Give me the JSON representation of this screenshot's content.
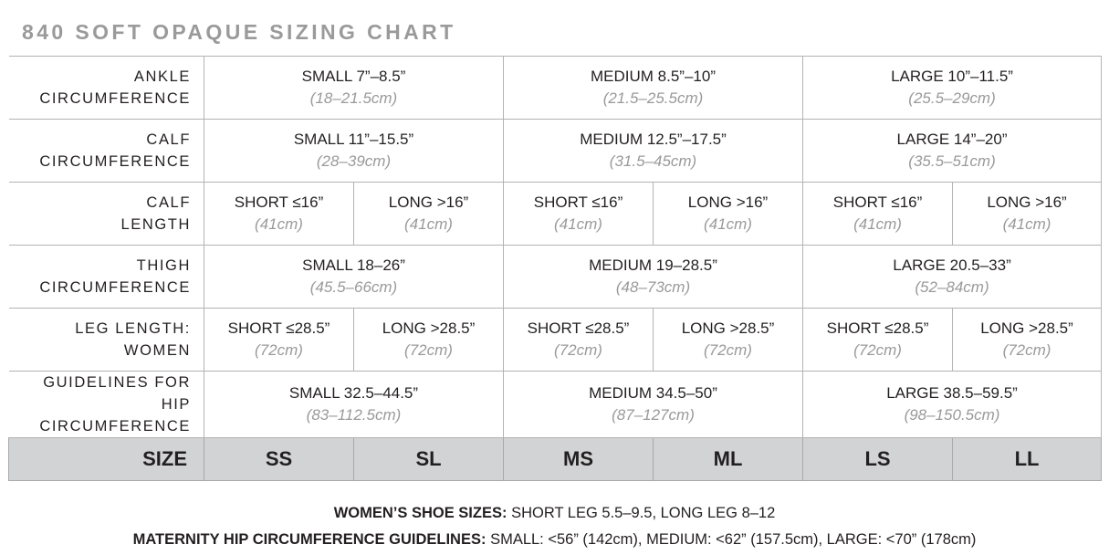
{
  "title": "840 SOFT OPAQUE SIZING CHART",
  "rows": {
    "ankle": {
      "label_1": "ANKLE",
      "label_2": "CIRCUMFERENCE",
      "small": {
        "size": "SMALL 7”–8.5”",
        "cm": "(18–21.5cm)"
      },
      "medium": {
        "size": "MEDIUM 8.5”–10”",
        "cm": "(21.5–25.5cm)"
      },
      "large": {
        "size": "LARGE 10”–11.5”",
        "cm": "(25.5–29cm)"
      }
    },
    "calf_circ": {
      "label_1": "CALF",
      "label_2": "CIRCUMFERENCE",
      "small": {
        "size": "SMALL 11”–15.5”",
        "cm": "(28–39cm)"
      },
      "medium": {
        "size": "MEDIUM 12.5”–17.5”",
        "cm": "(31.5–45cm)"
      },
      "large": {
        "size": "LARGE 14”–20”",
        "cm": "(35.5–51cm)"
      }
    },
    "calf_length": {
      "label_1": "CALF",
      "label_2": "LENGTH",
      "short": {
        "size": "SHORT ≤16”",
        "cm": "(41cm)"
      },
      "long": {
        "size": "LONG >16”",
        "cm": "(41cm)"
      }
    },
    "thigh": {
      "label_1": "THIGH",
      "label_2": "CIRCUMFERENCE",
      "small": {
        "size": "SMALL 18–26”",
        "cm": "(45.5–66cm)"
      },
      "medium": {
        "size": "MEDIUM 19–28.5”",
        "cm": "(48–73cm)"
      },
      "large": {
        "size": "LARGE 20.5–33”",
        "cm": "(52–84cm)"
      }
    },
    "leg_length": {
      "label_1": "LEG LENGTH:",
      "label_2": "WOMEN",
      "short": {
        "size": "SHORT ≤28.5”",
        "cm": "(72cm)"
      },
      "long": {
        "size": "LONG >28.5”",
        "cm": "(72cm)"
      }
    },
    "hip": {
      "label_1": "GUIDELINES FOR HIP",
      "label_2": "CIRCUMFERENCE",
      "small": {
        "size": "SMALL 32.5–44.5”",
        "cm": "(83–112.5cm)"
      },
      "medium": {
        "size": "MEDIUM 34.5–50”",
        "cm": "(87–127cm)"
      },
      "large": {
        "size": "LARGE 38.5–59.5”",
        "cm": "(98–150.5cm)"
      }
    }
  },
  "size_row": {
    "label": "SIZE",
    "codes": [
      "SS",
      "SL",
      "MS",
      "ML",
      "LS",
      "LL"
    ]
  },
  "footer": {
    "shoe_label": "WOMEN’S SHOE SIZES:",
    "shoe_text": " SHORT LEG 5.5–9.5, LONG LEG 8–12",
    "maternity_label": "MATERNITY HIP CIRCUMFERENCE GUIDELINES:",
    "maternity_text": " SMALL: <56” (142cm), MEDIUM: <62” (157.5cm), LARGE: <70” (178cm)"
  }
}
